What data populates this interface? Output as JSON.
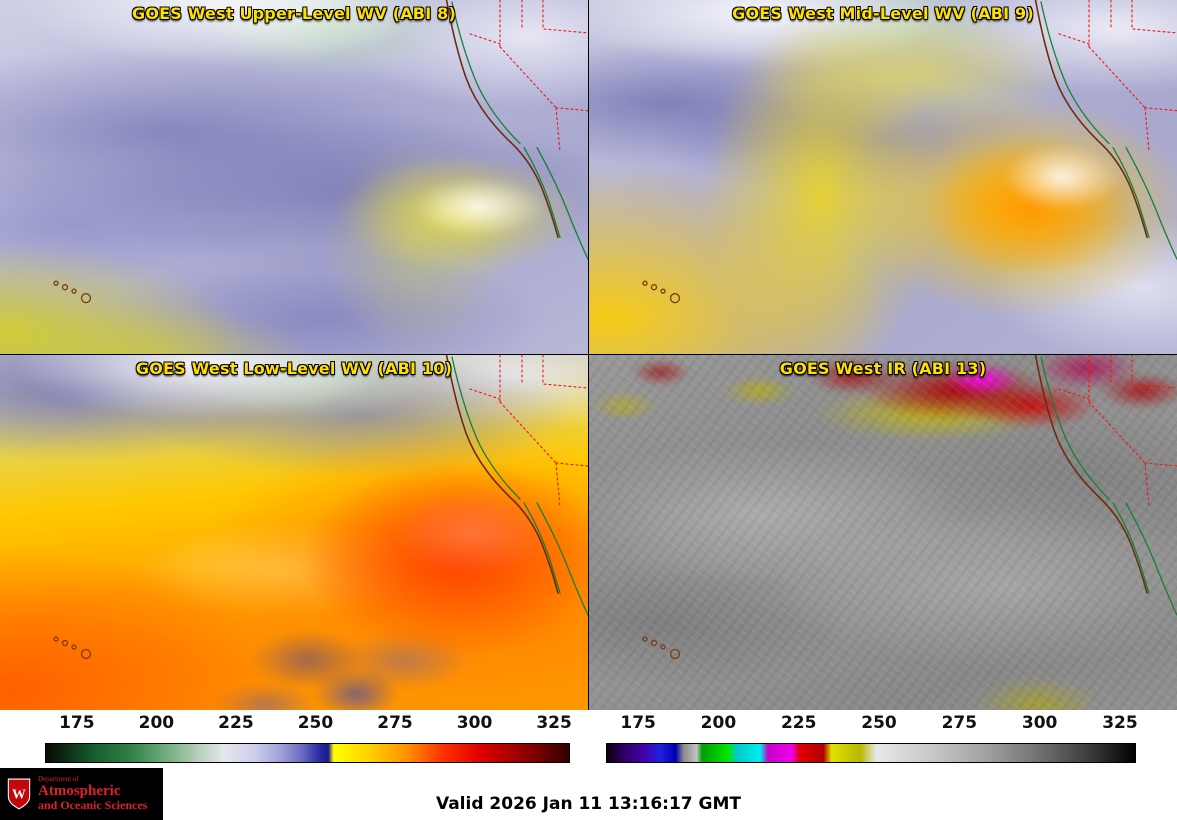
{
  "panels": [
    {
      "title": "GOES West Upper-Level WV (ABI 8)"
    },
    {
      "title": "GOES West Mid-Level WV (ABI 9)"
    },
    {
      "title": "GOES West Low-Level WV (ABI 10)"
    },
    {
      "title": "GOES West IR (ABI 13)"
    }
  ],
  "colorbars": {
    "range": [
      165,
      330
    ],
    "ticks": [
      175,
      200,
      225,
      250,
      275,
      300,
      325
    ],
    "wv_stops": [
      [
        0,
        "#0a0a0a"
      ],
      [
        3,
        "#0c2412"
      ],
      [
        9,
        "#175c2d"
      ],
      [
        16,
        "#2f8045"
      ],
      [
        23,
        "#6fae7d"
      ],
      [
        29,
        "#b7cdb9"
      ],
      [
        34,
        "#e6e8ee"
      ],
      [
        40,
        "#ccccea"
      ],
      [
        45,
        "#a0a0d8"
      ],
      [
        49,
        "#6a6ac2"
      ],
      [
        52,
        "#3030a4"
      ],
      [
        54,
        "#1a1a8f"
      ],
      [
        55,
        "#ffff00"
      ],
      [
        62,
        "#ffd000"
      ],
      [
        69,
        "#ff9000"
      ],
      [
        76,
        "#ff3000"
      ],
      [
        83,
        "#e00000"
      ],
      [
        90,
        "#a00000"
      ],
      [
        96,
        "#600000"
      ],
      [
        100,
        "#300000"
      ]
    ],
    "ir_stops": [
      [
        0,
        "#08000f"
      ],
      [
        3,
        "#2b0060"
      ],
      [
        7,
        "#4400aa"
      ],
      [
        10,
        "#2020e0"
      ],
      [
        13,
        "#0000b0"
      ],
      [
        14.5,
        "#8a8a8a"
      ],
      [
        17,
        "#c2c2c2"
      ],
      [
        18,
        "#00a000"
      ],
      [
        23,
        "#00e800"
      ],
      [
        24.5,
        "#00c8c8"
      ],
      [
        29,
        "#00eeee"
      ],
      [
        30.5,
        "#c800c8"
      ],
      [
        35,
        "#ee00ee"
      ],
      [
        36.5,
        "#e00000"
      ],
      [
        41,
        "#b00000"
      ],
      [
        42.5,
        "#e0e000"
      ],
      [
        48,
        "#b8b800"
      ],
      [
        51,
        "#e8e8e8"
      ],
      [
        62,
        "#c6c6c6"
      ],
      [
        72,
        "#a0a0a0"
      ],
      [
        82,
        "#707070"
      ],
      [
        92,
        "#383838"
      ],
      [
        100,
        "#000000"
      ]
    ]
  },
  "footer": {
    "valid_time": "Valid 2026 Jan 11 13:16:17 GMT"
  },
  "logo": {
    "line1": "Department of",
    "line2": "Atmospheric",
    "line3": "and Oceanic Sciences",
    "crest_letter": "W",
    "text_color": "#e01f2d"
  },
  "style": {
    "title_color": "#ffdf00"
  }
}
